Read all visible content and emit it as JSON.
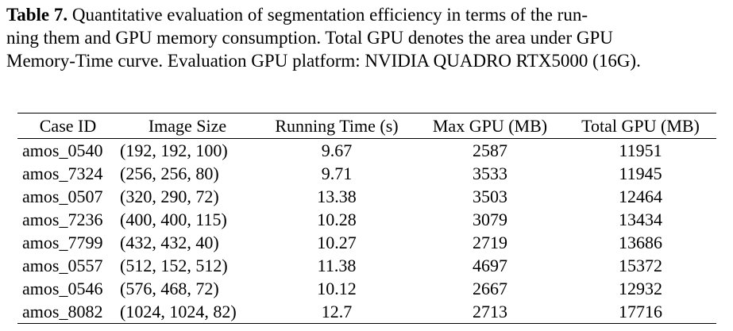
{
  "caption": {
    "label": "Table 7.",
    "line1": " Quantitative evaluation of segmentation efficiency in terms of the run-",
    "line2": "ning them and GPU memory consumption. Total GPU denotes the area under GPU",
    "line3": "Memory-Time curve. Evaluation GPU platform: NVIDIA QUADRO RTX5000 (16G)."
  },
  "table": {
    "headers": [
      "Case ID",
      "Image Size",
      "Running Time (s)",
      "Max GPU (MB)",
      "Total GPU (MB)"
    ],
    "rows": [
      [
        "amos_0540",
        "(192, 192, 100)",
        "9.67",
        "2587",
        "11951"
      ],
      [
        "amos_7324",
        "(256, 256, 80)",
        "9.71",
        "3533",
        "11945"
      ],
      [
        "amos_0507",
        "(320, 290, 72)",
        "13.38",
        "3503",
        "12464"
      ],
      [
        "amos_7236",
        "(400, 400, 115)",
        "10.28",
        "3079",
        "13434"
      ],
      [
        "amos_7799",
        "(432, 432, 40)",
        "10.27",
        "2719",
        "13686"
      ],
      [
        "amos_0557",
        "(512, 152, 512)",
        "11.38",
        "4697",
        "15372"
      ],
      [
        "amos_0546",
        "(576, 468, 72)",
        "10.12",
        "2667",
        "12932"
      ],
      [
        "amos_8082",
        "(1024, 1024, 82)",
        "12.7",
        "2713",
        "17716"
      ]
    ]
  }
}
